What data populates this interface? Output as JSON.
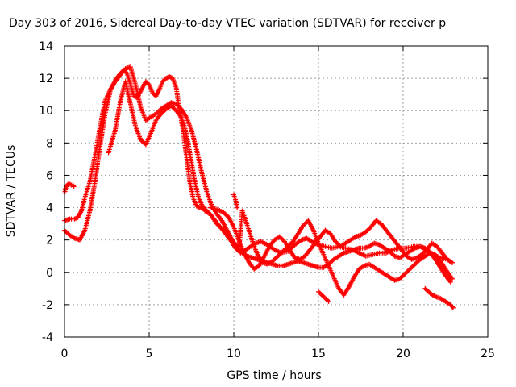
{
  "chart_data": {
    "type": "scatter",
    "title": "Day 303 of 2016, Sidereal Day-to-day VTEC variation (SDTVAR) for receiver p",
    "xlabel": "GPS time / hours",
    "ylabel": "SDTVAR / TECUs",
    "xlim": [
      0,
      25
    ],
    "ylim": [
      -4,
      14
    ],
    "xticks": [
      0,
      5,
      10,
      15,
      20,
      25
    ],
    "yticks": [
      -4,
      -2,
      0,
      2,
      4,
      6,
      8,
      10,
      12,
      14
    ],
    "grid": true,
    "marker": "plus",
    "color": "#ff0000",
    "series": [
      {
        "x": [
          0.0,
          0.1,
          0.25,
          0.4,
          0.5,
          0.55
        ],
        "y": [
          4.9,
          5.3,
          5.5,
          5.4,
          5.4,
          5.3
        ]
      },
      {
        "x": [
          0.0,
          0.3,
          0.6,
          0.8,
          1.0,
          1.2,
          1.5,
          1.8,
          2.1,
          2.4,
          2.7,
          3.0,
          3.3,
          3.5,
          3.7,
          3.9,
          4.1,
          4.3,
          4.5,
          4.8,
          5.0,
          5.2,
          5.4,
          5.6,
          5.8,
          6.0,
          6.2,
          6.4,
          6.6,
          6.8,
          7.0,
          7.2,
          7.4,
          7.6,
          7.8,
          8.0,
          8.3,
          8.6,
          9.0,
          9.4,
          9.8,
          10.1,
          10.4,
          10.7,
          11.0,
          11.3,
          11.6,
          12.0,
          12.4,
          12.8,
          13.2,
          13.6,
          14.0,
          14.3,
          14.6,
          15.0,
          15.4,
          15.8,
          16.2,
          16.6,
          17.0,
          17.4,
          17.8,
          18.2,
          18.6,
          19.0,
          19.4,
          19.8,
          20.2,
          20.6,
          21.0,
          21.4,
          21.8,
          22.2,
          22.6,
          22.9
        ],
        "y": [
          3.2,
          3.3,
          3.3,
          3.4,
          3.8,
          4.6,
          5.6,
          7.2,
          9.0,
          10.6,
          11.3,
          11.8,
          12.2,
          12.5,
          12.3,
          11.6,
          10.9,
          10.8,
          11.2,
          11.8,
          11.6,
          11.1,
          10.9,
          11.3,
          11.8,
          12.0,
          12.1,
          12.0,
          11.4,
          10.0,
          8.8,
          7.2,
          5.6,
          4.6,
          4.1,
          4.0,
          3.9,
          3.6,
          3.0,
          2.6,
          2.0,
          1.5,
          1.2,
          1.4,
          1.6,
          1.8,
          1.9,
          1.7,
          1.4,
          1.2,
          1.3,
          1.7,
          2.0,
          2.1,
          1.9,
          1.7,
          1.6,
          1.5,
          1.6,
          1.5,
          1.4,
          1.2,
          1.0,
          1.1,
          1.2,
          1.2,
          1.4,
          1.5,
          1.5,
          1.6,
          1.6,
          1.4,
          1.1,
          0.9,
          0.8,
          0.6
        ]
      },
      {
        "x": [
          0.0,
          0.3,
          0.6,
          0.9,
          1.2,
          1.5,
          1.8,
          2.1,
          2.4,
          2.7,
          3.0,
          3.3,
          3.6,
          3.9,
          4.2,
          4.5,
          4.8,
          5.1,
          5.4,
          5.7,
          6.0,
          6.3,
          6.6,
          6.9,
          7.2,
          7.5,
          7.8,
          8.1,
          8.4,
          8.7,
          9.0,
          9.3,
          9.6,
          9.9,
          10.2,
          10.5,
          10.8,
          11.1,
          11.4,
          11.7,
          12.0,
          12.3,
          12.6,
          12.9,
          13.2,
          13.5,
          13.8,
          14.1,
          14.4,
          14.7,
          15.0,
          15.3,
          15.6,
          15.9,
          16.2,
          16.5,
          16.8,
          17.1,
          17.4,
          17.7,
          18.0,
          18.3,
          18.6,
          18.9,
          19.2,
          19.5,
          19.8,
          20.1,
          20.4,
          20.7,
          21.0,
          21.3,
          21.6,
          21.9,
          22.2,
          22.5,
          22.8
        ],
        "y": [
          2.6,
          2.3,
          2.1,
          2.0,
          2.6,
          3.8,
          5.6,
          7.8,
          9.8,
          11.2,
          11.9,
          12.3,
          12.6,
          12.7,
          11.6,
          10.2,
          9.4,
          9.6,
          9.8,
          10.1,
          10.3,
          10.5,
          10.4,
          10.1,
          9.6,
          8.8,
          7.6,
          6.2,
          5.0,
          4.1,
          3.6,
          3.2,
          2.6,
          2.0,
          1.6,
          1.2,
          1.0,
          0.9,
          0.8,
          0.7,
          0.6,
          0.5,
          0.4,
          0.4,
          0.5,
          0.6,
          0.7,
          0.6,
          0.5,
          0.4,
          0.3,
          0.3,
          0.5,
          0.8,
          1.0,
          1.2,
          1.3,
          1.4,
          1.5,
          1.5,
          1.6,
          1.8,
          1.7,
          1.5,
          1.3,
          1.0,
          0.9,
          1.1,
          1.3,
          1.5,
          1.6,
          1.5,
          1.2,
          0.8,
          0.3,
          -0.2,
          -0.6
        ]
      },
      {
        "x": [
          2.6,
          3.0,
          3.3,
          3.6,
          3.9,
          4.2,
          4.5,
          4.8,
          5.1,
          5.4,
          5.7,
          6.0,
          6.3,
          6.6,
          6.9,
          7.1,
          7.3,
          7.5,
          7.7,
          7.9,
          8.1,
          8.3,
          8.6,
          8.9,
          9.2,
          9.5,
          9.8,
          10.1,
          10.3,
          10.5,
          10.8,
          11.1,
          11.4,
          11.7,
          12.0,
          12.3,
          12.6,
          12.9,
          13.2,
          13.5,
          13.8,
          14.1,
          14.4,
          14.7,
          15.0,
          15.3,
          15.6,
          15.9,
          16.2,
          16.5,
          16.8,
          17.1,
          17.4,
          17.7,
          18.0,
          18.3,
          18.6,
          18.9,
          19.2,
          19.5,
          19.8,
          20.1,
          20.4,
          20.7,
          21.0,
          21.3,
          21.6,
          21.9,
          22.2,
          22.5,
          22.9
        ],
        "y": [
          7.4,
          8.8,
          10.6,
          11.8,
          10.4,
          9.0,
          8.2,
          7.9,
          8.6,
          9.4,
          9.8,
          10.1,
          10.3,
          10.0,
          9.6,
          9.0,
          8.0,
          6.8,
          5.6,
          4.7,
          4.2,
          3.8,
          3.6,
          3.2,
          2.8,
          2.4,
          2.0,
          1.6,
          1.4,
          3.8,
          2.9,
          1.9,
          1.1,
          0.6,
          0.5,
          0.7,
          1.0,
          1.3,
          1.6,
          1.9,
          2.4,
          2.9,
          3.2,
          2.6,
          1.8,
          1.1,
          0.4,
          -0.3,
          -1.0,
          -1.4,
          -0.9,
          -0.3,
          0.2,
          0.4,
          0.5,
          0.3,
          0.1,
          -0.1,
          -0.3,
          -0.5,
          -0.4,
          -0.1,
          0.2,
          0.5,
          0.8,
          1.0,
          1.2,
          1.1,
          0.7,
          0.2,
          -0.4
        ]
      },
      {
        "x": [
          8.6,
          9.0,
          9.4,
          9.7,
          10.0,
          10.3,
          10.6,
          10.9,
          11.2,
          11.5,
          11.8,
          12.1,
          12.4,
          12.7,
          13.0,
          13.3,
          13.6,
          13.9,
          14.2,
          14.5,
          14.8,
          15.1,
          15.4,
          15.7,
          16.0,
          16.3,
          16.6,
          16.9,
          17.2,
          17.5,
          17.8,
          18.1,
          18.4,
          18.7,
          19.0,
          19.3,
          19.6,
          19.9,
          20.2,
          20.5,
          20.8,
          21.1,
          21.4,
          21.7,
          22.0,
          22.3,
          22.6,
          22.9
        ],
        "y": [
          4.0,
          3.9,
          3.7,
          3.4,
          2.8,
          2.0,
          1.2,
          0.6,
          0.2,
          0.4,
          1.0,
          1.6,
          2.0,
          2.2,
          1.9,
          1.4,
          0.9,
          0.8,
          1.0,
          1.4,
          1.8,
          2.2,
          2.6,
          2.4,
          1.9,
          1.6,
          1.8,
          2.0,
          2.2,
          2.3,
          2.5,
          2.8,
          3.2,
          3.0,
          2.6,
          2.2,
          1.8,
          1.4,
          1.0,
          0.8,
          0.9,
          1.1,
          1.4,
          1.8,
          1.6,
          1.2,
          0.8,
          0.6
        ]
      },
      {
        "x": [
          15.0,
          15.3,
          15.6
        ],
        "y": [
          -1.2,
          -1.5,
          -1.8
        ]
      },
      {
        "x": [
          21.3,
          21.6,
          21.9,
          22.2,
          22.5,
          22.8,
          22.95
        ],
        "y": [
          -1.0,
          -1.3,
          -1.5,
          -1.6,
          -1.8,
          -2.0,
          -2.2
        ]
      },
      {
        "x": [
          10.0,
          10.1,
          10.2
        ],
        "y": [
          4.8,
          4.5,
          4.0
        ]
      }
    ]
  }
}
